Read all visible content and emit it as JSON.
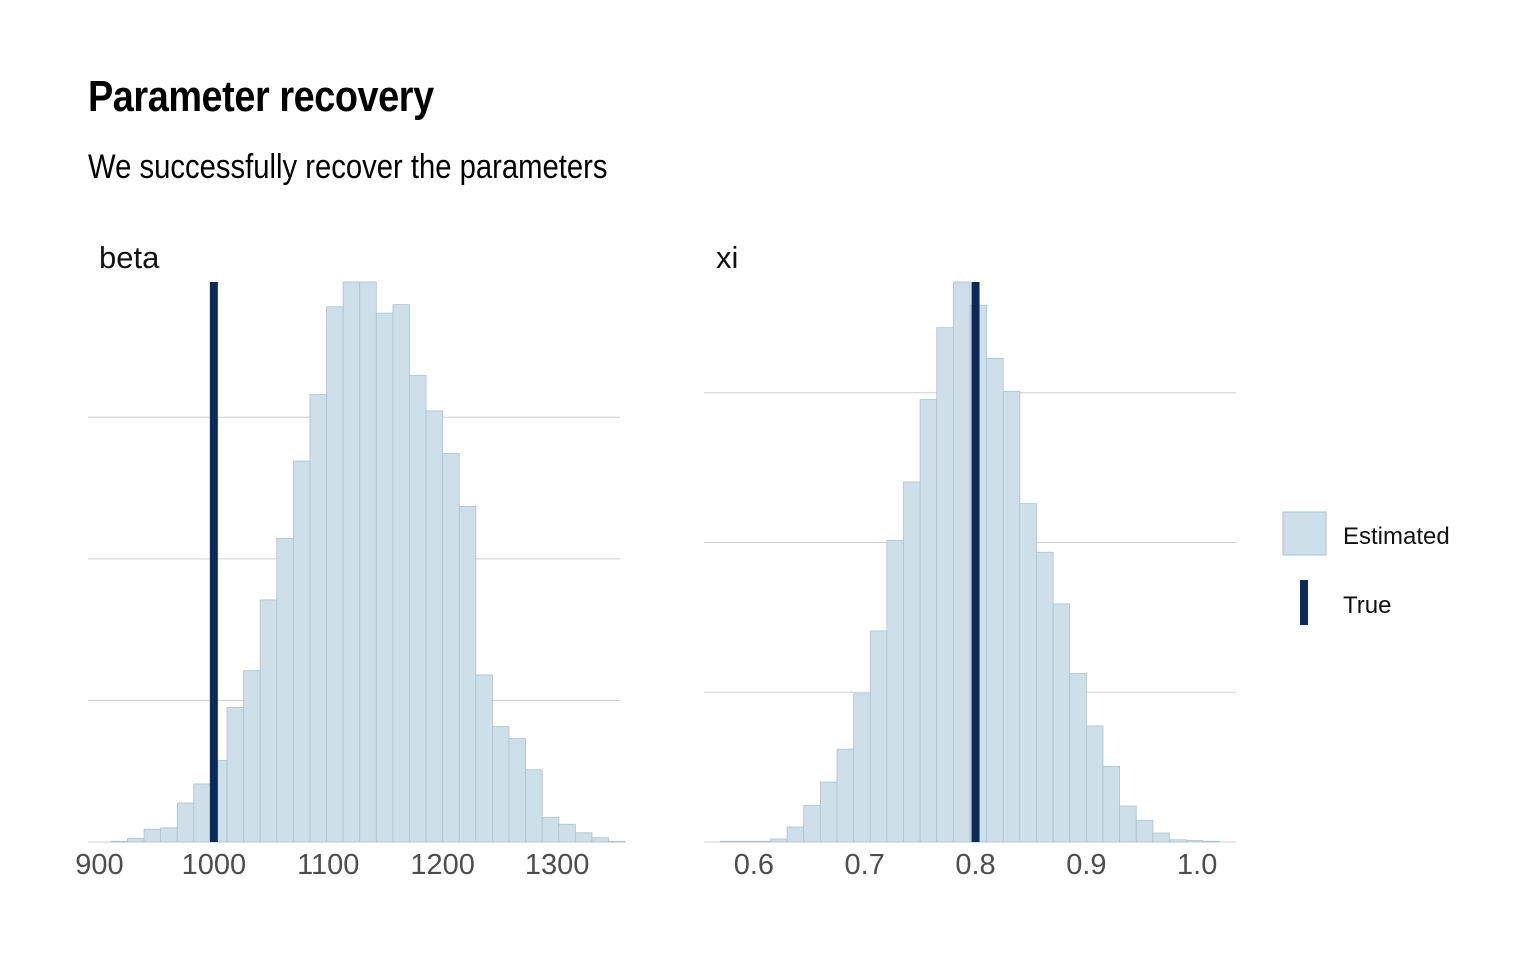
{
  "title": "Parameter recovery",
  "subtitle": "We successfully recover the parameters",
  "colors": {
    "estimated_fill": "#cfdfea",
    "estimated_stroke": "#a9c3d3",
    "true_line": "#0a2a5c",
    "grid": "#d0d0d0"
  },
  "legend": {
    "position": "right",
    "items": [
      "Estimated",
      "True"
    ]
  },
  "chart_data": [
    {
      "type": "histogram",
      "panel_label": "beta",
      "xlim": [
        890,
        1355
      ],
      "ticks": [
        900,
        1000,
        1100,
        1200,
        1300
      ],
      "tick_labels": [
        "900",
        "1000",
        "1100",
        "1200",
        "1300"
      ],
      "bin_width": 14.5,
      "bin_start": 910,
      "counts": [
        1,
        5,
        18,
        20,
        55,
        82,
        115,
        190,
        242,
        342,
        429,
        538,
        632,
        756,
        791,
        791,
        747,
        759,
        659,
        609,
        549,
        474,
        236,
        163,
        146,
        102,
        35,
        25,
        13,
        6,
        1
      ],
      "ylim": [
        0,
        791
      ],
      "grid_y": [
        200,
        400,
        600
      ],
      "true_value": 1000
    },
    {
      "type": "histogram",
      "panel_label": "xi",
      "xlim": [
        0.555,
        1.035
      ],
      "ticks": [
        0.6,
        0.7,
        0.8,
        0.9,
        1.0
      ],
      "tick_labels": [
        "0.6",
        "0.7",
        "0.8",
        "0.9",
        "1.0"
      ],
      "bin_width": 0.015,
      "bin_start": 0.57,
      "counts": [
        1,
        1,
        1,
        4,
        20,
        49,
        80,
        124,
        198,
        282,
        403,
        481,
        591,
        687,
        748,
        717,
        646,
        602,
        452,
        387,
        318,
        225,
        155,
        101,
        48,
        29,
        12,
        3,
        2,
        1
      ],
      "ylim": [
        0,
        748
      ],
      "grid_y": [
        200,
        400,
        600
      ],
      "true_value": 0.8
    }
  ]
}
